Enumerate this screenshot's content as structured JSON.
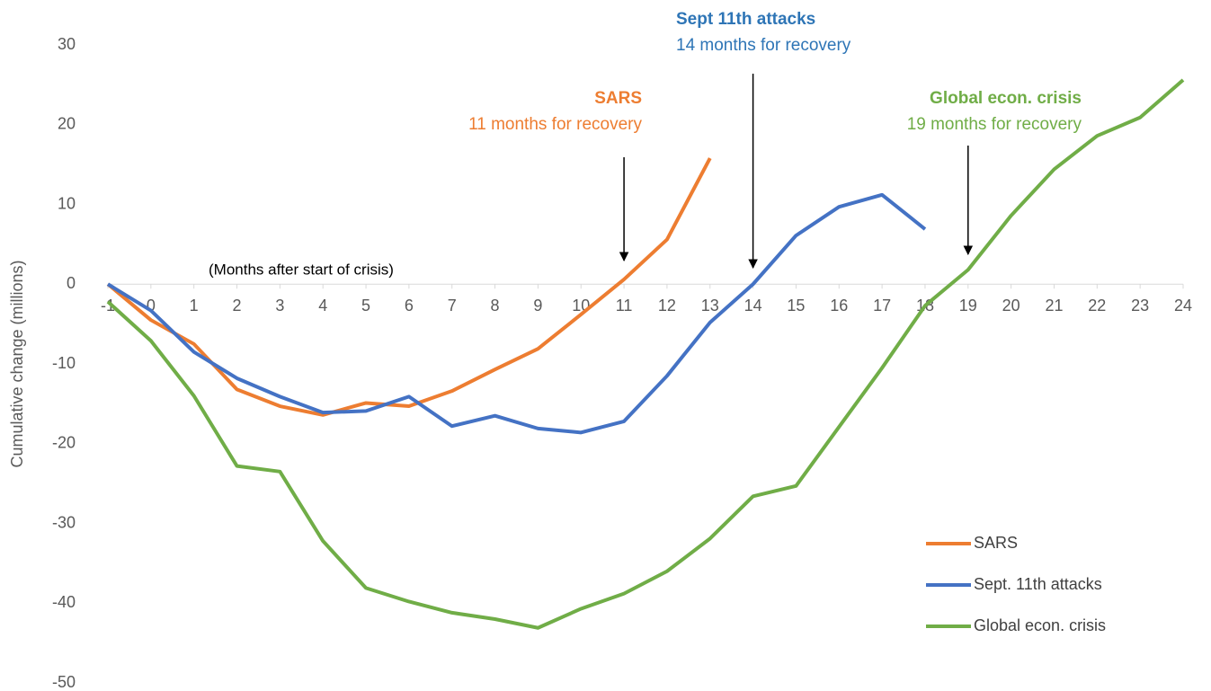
{
  "chart_data": {
    "type": "line",
    "ylabel": "Cumulative change (millions)",
    "xlabel": "(Months after start of crisis)",
    "x": [
      -1,
      0,
      1,
      2,
      3,
      4,
      5,
      6,
      7,
      8,
      9,
      10,
      11,
      12,
      13,
      14,
      15,
      16,
      17,
      18,
      19,
      20,
      21,
      22,
      23,
      24
    ],
    "xlim": [
      -1,
      24
    ],
    "xticks": [
      -1,
      0,
      1,
      2,
      3,
      4,
      5,
      6,
      7,
      8,
      9,
      10,
      11,
      12,
      13,
      14,
      15,
      16,
      17,
      18,
      19,
      20,
      21,
      22,
      23,
      24
    ],
    "ylim": [
      -50,
      30
    ],
    "yticks": [
      -50,
      -40,
      -30,
      -20,
      -10,
      0,
      10,
      20,
      30
    ],
    "grid": false,
    "legend": "lower right",
    "series": [
      {
        "name": "SARS",
        "color": "#ed7d31",
        "values": [
          0,
          -4.5,
          -7.5,
          -13.2,
          -15.3,
          -16.4,
          -14.9,
          -15.3,
          -13.4,
          -10.7,
          -8.1,
          -3.8,
          0.6,
          5.6,
          15.8,
          null,
          null,
          null,
          null,
          null,
          null,
          null,
          null,
          null,
          null,
          null
        ]
      },
      {
        "name": "Sept. 11th attacks",
        "color": "#4472c4",
        "values": [
          0,
          -3.3,
          -8.5,
          -11.8,
          -14.1,
          -16.1,
          -15.9,
          -14.1,
          -17.8,
          -16.5,
          -18.1,
          -18.6,
          -17.2,
          -11.5,
          -4.8,
          0,
          6.1,
          9.7,
          11.2,
          6.9,
          null,
          null,
          null,
          null,
          null,
          null
        ]
      },
      {
        "name": "Global econ. crisis",
        "color": "#70ad47",
        "values": [
          -2.2,
          -7.1,
          -14.0,
          -22.8,
          -23.5,
          -32.2,
          -38.1,
          -39.8,
          -41.2,
          -42.0,
          -43.1,
          -40.7,
          -38.8,
          -36.0,
          -31.9,
          -26.6,
          -25.3,
          -17.9,
          -10.5,
          -2.7,
          1.8,
          8.6,
          14.4,
          18.6,
          20.9,
          25.6
        ]
      }
    ],
    "annotations": [
      {
        "title": "SARS",
        "text": "11 months for recovery",
        "x": 11,
        "color": "#ed7d31"
      },
      {
        "title": "Sept 11th attacks",
        "text": "14 months for recovery",
        "x": 14,
        "color": "#2e75b6"
      },
      {
        "title": "Global econ. crisis",
        "text": "19 months for recovery",
        "x": 19,
        "color": "#70ad47"
      }
    ]
  }
}
